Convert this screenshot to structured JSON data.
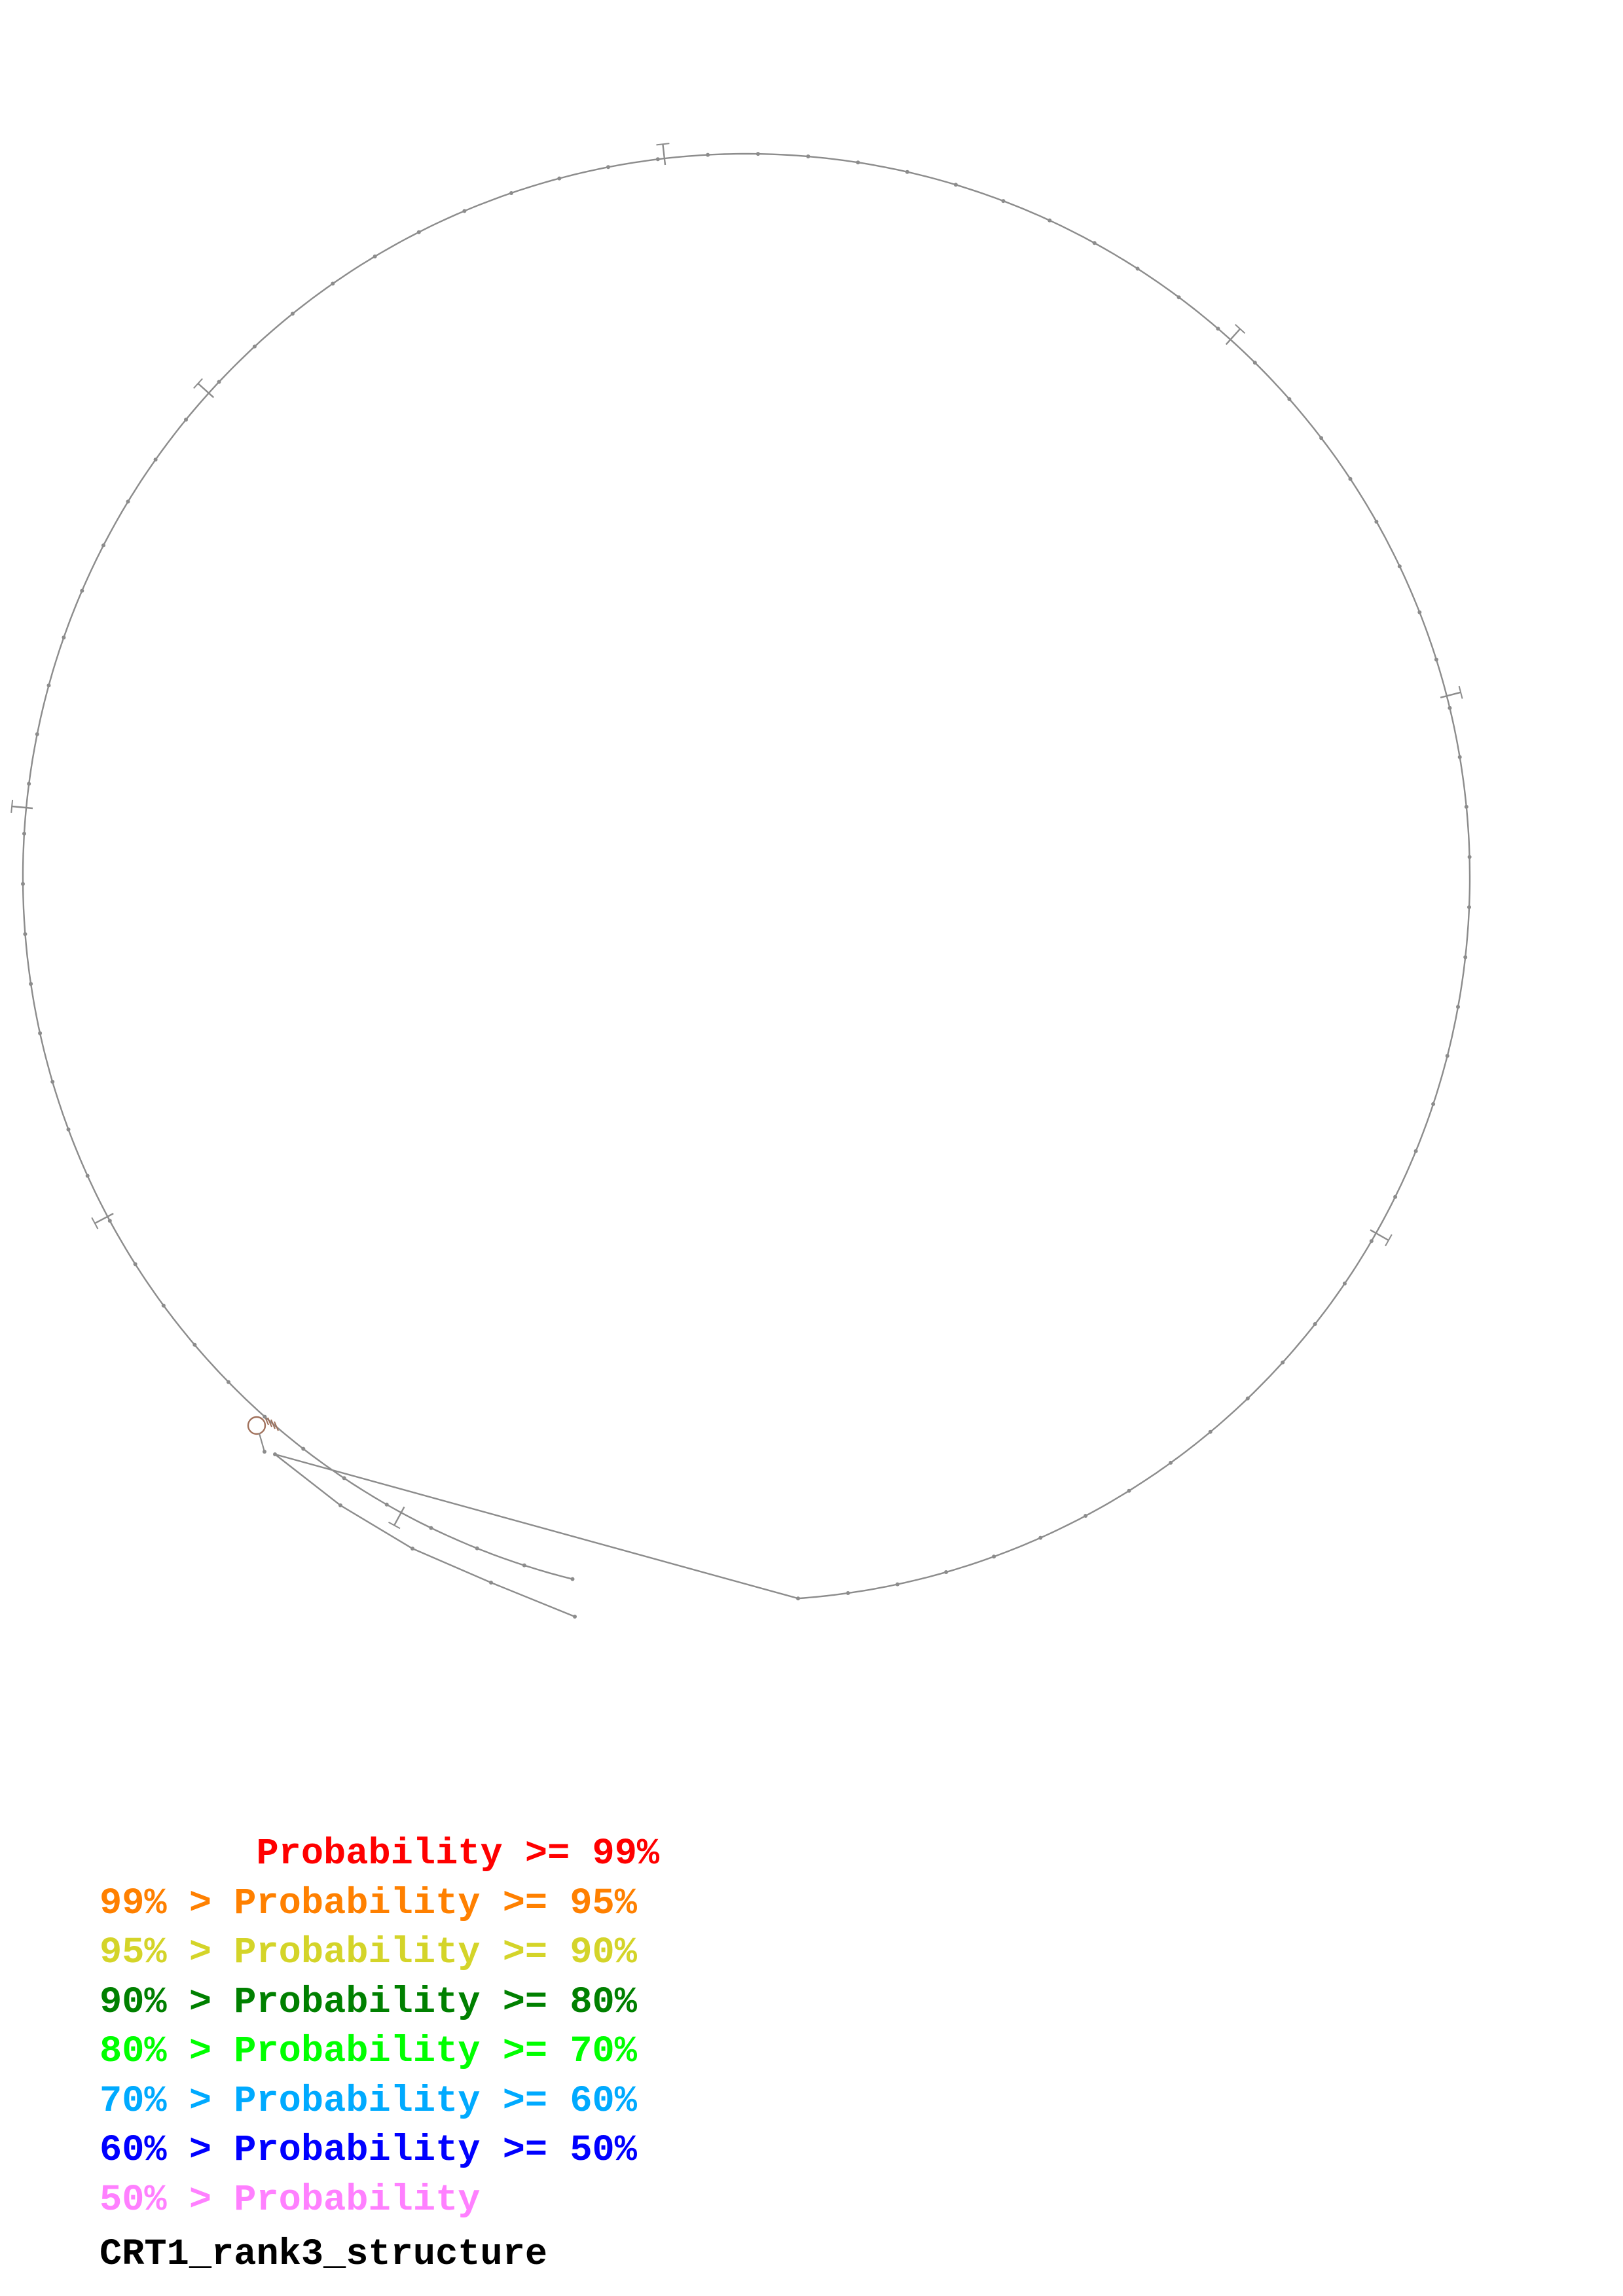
{
  "legend": [
    {
      "text": "       Probability >= 99%",
      "color": "#ff0000"
    },
    {
      "text": "99% > Probability >= 95%",
      "color": "#ff8000"
    },
    {
      "text": "95% > Probability >= 90%",
      "color": "#d4d429"
    },
    {
      "text": "90% > Probability >= 80%",
      "color": "#008000"
    },
    {
      "text": "80% > Probability >= 70%",
      "color": "#00ff00"
    },
    {
      "text": "70% > Probability >= 60%",
      "color": "#00aaff"
    },
    {
      "text": "60% > Probability >= 50%",
      "color": "#0000ff"
    },
    {
      "text": "50% > Probability",
      "color": "#ff80ff"
    }
  ],
  "structure_name": "CRT1_rank3_structure",
  "colors": {
    "backbone": "#8c8c8c",
    "nucleotide": "#8c8c8c",
    "hairpin": "#a0705a"
  }
}
